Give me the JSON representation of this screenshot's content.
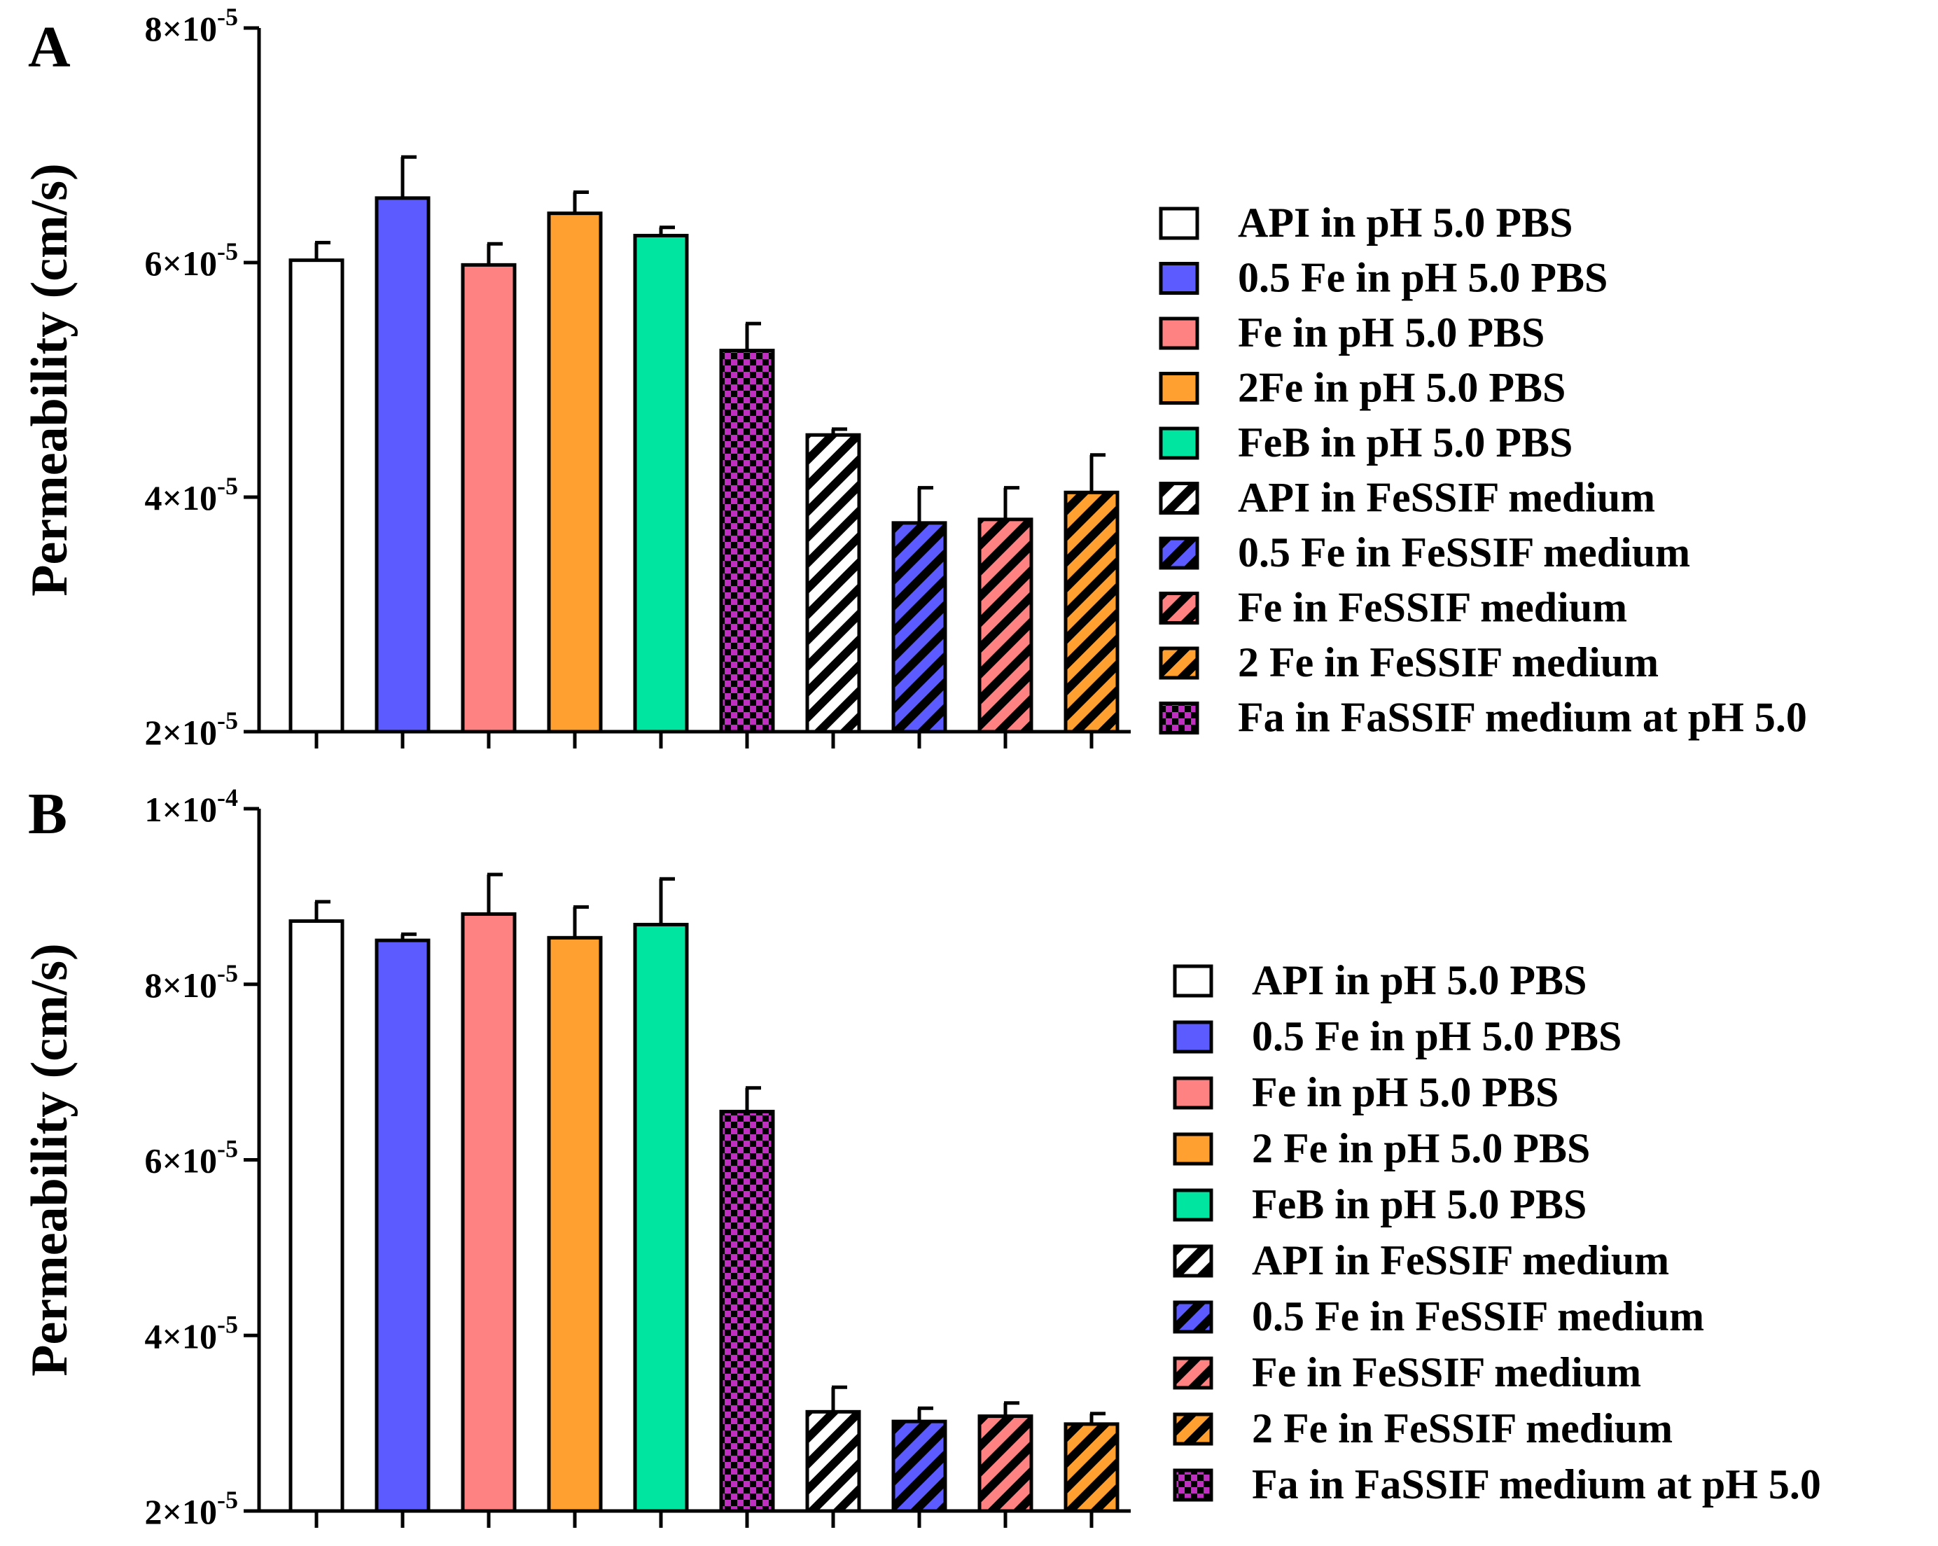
{
  "chart_data": [
    {
      "panel": "A",
      "type": "bar",
      "ylabel": "Permeability (cm/s)",
      "ylim": [
        2e-05,
        8e-05
      ],
      "yticks": [
        {
          "value": 2e-05,
          "mantissa": "2",
          "exp": "-5"
        },
        {
          "value": 4e-05,
          "mantissa": "4",
          "exp": "-5"
        },
        {
          "value": 6e-05,
          "mantissa": "6",
          "exp": "-5"
        },
        {
          "value": 8e-05,
          "mantissa": "8",
          "exp": "-5"
        }
      ],
      "categories": [
        "API in pH 5.0 PBS",
        "0.5 Fe in pH 5.0 PBS",
        "Fe in pH 5.0 PBS",
        "2Fe in pH 5.0 PBS",
        "FeB in pH 5.0 PBS",
        "Fa in FaSSIF medium at pH 5.0",
        "API in FeSSIF medium",
        "0.5 Fe in FeSSIF medium",
        "Fe in FeSSIF medium",
        "2 Fe in FeSSIF medium"
      ],
      "values": [
        6.02e-05,
        6.55e-05,
        5.98e-05,
        6.42e-05,
        6.23e-05,
        5.25e-05,
        4.53e-05,
        3.78e-05,
        3.81e-05,
        4.04e-05
      ],
      "errors": [
        1.5e-06,
        3.5e-06,
        1.8e-06,
        1.8e-06,
        7e-07,
        2.3e-06,
        5e-07,
        3e-06,
        2.7e-06,
        3.2e-06
      ],
      "legend": [
        {
          "label": "API in pH 5.0 PBS",
          "color": "#ffffff",
          "pattern": "solid"
        },
        {
          "label": "0.5 Fe in pH 5.0 PBS",
          "color": "#5b5bff",
          "pattern": "solid"
        },
        {
          "label": "Fe in pH 5.0 PBS",
          "color": "#ff8282",
          "pattern": "solid"
        },
        {
          "label": "2Fe in pH 5.0 PBS",
          "color": "#ffa030",
          "pattern": "solid"
        },
        {
          "label": "FeB in pH 5.0 PBS",
          "color": "#00e6a0",
          "pattern": "solid"
        },
        {
          "label": "API in FeSSIF medium",
          "color": "#ffffff",
          "pattern": "hatch"
        },
        {
          "label": "0.5 Fe in FeSSIF medium",
          "color": "#5b5bff",
          "pattern": "hatch"
        },
        {
          "label": "Fe in FeSSIF medium",
          "color": "#ff8282",
          "pattern": "hatch"
        },
        {
          "label": "2 Fe in FeSSIF medium",
          "color": "#ffa030",
          "pattern": "hatch"
        },
        {
          "label": "Fa in FaSSIF medium at pH 5.0",
          "color": "#c030c0",
          "pattern": "check"
        }
      ]
    },
    {
      "panel": "B",
      "type": "bar",
      "ylabel": "Permeability (cm/s)",
      "ylim": [
        2e-05,
        0.0001
      ],
      "yticks": [
        {
          "value": 2e-05,
          "mantissa": "2",
          "exp": "-5"
        },
        {
          "value": 4e-05,
          "mantissa": "4",
          "exp": "-5"
        },
        {
          "value": 6e-05,
          "mantissa": "6",
          "exp": "-5"
        },
        {
          "value": 8e-05,
          "mantissa": "8",
          "exp": "-5"
        },
        {
          "value": 0.0001,
          "mantissa": "1",
          "exp": "-4"
        }
      ],
      "categories": [
        "API in pH 5.0 PBS",
        "0.5 Fe in pH 5.0 PBS",
        "Fe in pH 5.0 PBS",
        "2 Fe in pH 5.0 PBS",
        "FeB in pH 5.0 PBS",
        "Fa in FaSSIF medium at pH 5.0",
        "API in FeSSIF medium",
        "0.5 Fe in FeSSIF medium",
        "Fe in FeSSIF medium",
        "2 Fe in FeSSIF medium"
      ],
      "values": [
        8.72e-05,
        8.5e-05,
        8.8e-05,
        8.53e-05,
        8.68e-05,
        6.55e-05,
        3.13e-05,
        3.02e-05,
        3.08e-05,
        2.99e-05
      ],
      "errors": [
        2.2e-06,
        7e-07,
        4.5e-06,
        3.5e-06,
        5.2e-06,
        2.7e-06,
        2.8e-06,
        1.5e-06,
        1.5e-06,
        1.2e-06
      ],
      "legend": [
        {
          "label": "API in pH 5.0 PBS",
          "color": "#ffffff",
          "pattern": "solid"
        },
        {
          "label": "0.5 Fe in pH 5.0 PBS",
          "color": "#5b5bff",
          "pattern": "solid"
        },
        {
          "label": "Fe in pH 5.0 PBS",
          "color": "#ff8282",
          "pattern": "solid"
        },
        {
          "label": "2 Fe in pH 5.0 PBS",
          "color": "#ffa030",
          "pattern": "solid"
        },
        {
          "label": "FeB in pH 5.0 PBS",
          "color": "#00e6a0",
          "pattern": "solid"
        },
        {
          "label": "API in FeSSIF medium",
          "color": "#ffffff",
          "pattern": "hatch"
        },
        {
          "label": "0.5 Fe in FeSSIF medium",
          "color": "#5b5bff",
          "pattern": "hatch"
        },
        {
          "label": "Fe in FeSSIF medium",
          "color": "#ff8282",
          "pattern": "hatch"
        },
        {
          "label": "2 Fe in FeSSIF medium",
          "color": "#ffa030",
          "pattern": "hatch"
        },
        {
          "label": "Fa in FaSSIF medium at pH 5.0",
          "color": "#c030c0",
          "pattern": "check"
        }
      ]
    }
  ]
}
